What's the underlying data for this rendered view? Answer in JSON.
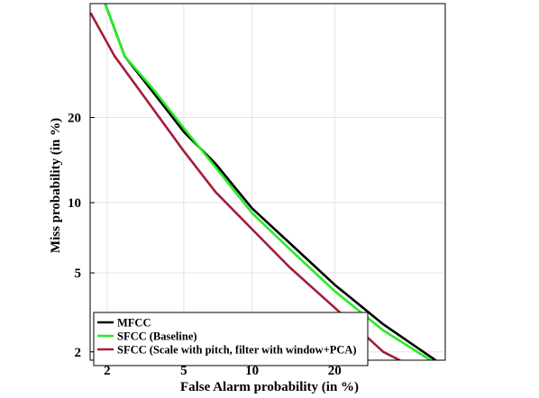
{
  "chart_data": {
    "type": "line",
    "title": "",
    "xlabel": "False Alarm probability (in %)",
    "ylabel": "Miss probability (in %)",
    "xscale": "probit",
    "yscale": "probit",
    "xlim": [
      1.6,
      40
    ],
    "ylim": [
      1.8,
      40
    ],
    "xticks": [
      2,
      5,
      10,
      20
    ],
    "yticks": [
      2,
      5,
      10,
      20
    ],
    "grid": true,
    "legend": "bottom-left",
    "series": [
      {
        "name": "MFCC",
        "color": "#000000",
        "points": [
          [
            1.95,
            40
          ],
          [
            2.5,
            30
          ],
          [
            3.5,
            24
          ],
          [
            5,
            18
          ],
          [
            7,
            14
          ],
          [
            10,
            9.5
          ],
          [
            14,
            6.8
          ],
          [
            20,
            4.4
          ],
          [
            28,
            2.8
          ],
          [
            38,
            1.8
          ]
        ]
      },
      {
        "name": "SFCC (Baseline)",
        "color": "#22ee22",
        "points": [
          [
            1.95,
            40
          ],
          [
            2.5,
            30
          ],
          [
            3.5,
            24.5
          ],
          [
            5,
            18.5
          ],
          [
            7,
            13.6
          ],
          [
            10,
            9.1
          ],
          [
            14,
            6.4
          ],
          [
            20,
            4.1
          ],
          [
            28,
            2.6
          ],
          [
            37,
            1.8
          ]
        ]
      },
      {
        "name": "SFCC (Scale with pitch, filter with window+PCA)",
        "color": "#a51c3a",
        "points": [
          [
            1.62,
            38
          ],
          [
            2.2,
            30
          ],
          [
            3.2,
            23
          ],
          [
            5,
            15.5
          ],
          [
            7,
            11
          ],
          [
            10,
            7.8
          ],
          [
            14,
            5.3
          ],
          [
            20,
            3.4
          ],
          [
            28,
            2.0
          ],
          [
            31,
            1.8
          ]
        ]
      }
    ]
  }
}
